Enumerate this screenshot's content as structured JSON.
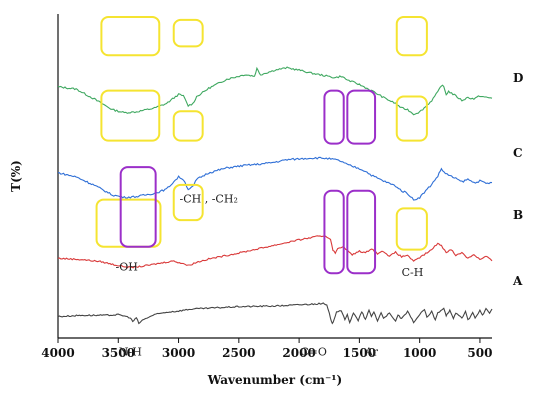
{
  "chart_data": {
    "type": "line",
    "title": "",
    "xlabel": "Wavenumber (cm⁻¹)",
    "ylabel": "T(%)",
    "xlim": [
      4000,
      400
    ],
    "x_reversed": true,
    "x_ticks": [
      4000,
      3500,
      3000,
      2500,
      2000,
      1500,
      1000,
      500
    ],
    "y_ticks": false,
    "grid": false,
    "legend": "none",
    "series": [
      {
        "name": "D",
        "color": "#3fa860",
        "points": [
          [
            4000,
            70
          ],
          [
            3850,
            67
          ],
          [
            3700,
            54
          ],
          [
            3550,
            40
          ],
          [
            3450,
            36
          ],
          [
            3350,
            37
          ],
          [
            3200,
            42
          ],
          [
            3100,
            48
          ],
          [
            3000,
            60
          ],
          [
            2960,
            58
          ],
          [
            2920,
            45
          ],
          [
            2880,
            48
          ],
          [
            2850,
            57
          ],
          [
            2750,
            68
          ],
          [
            2600,
            80
          ],
          [
            2450,
            86
          ],
          [
            2370,
            84
          ],
          [
            2350,
            94
          ],
          [
            2320,
            86
          ],
          [
            2200,
            92
          ],
          [
            2100,
            95
          ],
          [
            2000,
            92
          ],
          [
            1900,
            88
          ],
          [
            1800,
            85
          ],
          [
            1700,
            82
          ],
          [
            1650,
            84
          ],
          [
            1600,
            79
          ],
          [
            1500,
            73
          ],
          [
            1450,
            69
          ],
          [
            1400,
            65
          ],
          [
            1300,
            56
          ],
          [
            1200,
            48
          ],
          [
            1150,
            42
          ],
          [
            1100,
            40
          ],
          [
            1050,
            34
          ],
          [
            1000,
            37
          ],
          [
            950,
            44
          ],
          [
            900,
            52
          ],
          [
            850,
            63
          ],
          [
            820,
            72
          ],
          [
            800,
            70
          ],
          [
            780,
            60
          ],
          [
            760,
            64
          ],
          [
            700,
            58
          ],
          [
            650,
            52
          ],
          [
            600,
            56
          ],
          [
            550,
            54
          ],
          [
            500,
            58
          ],
          [
            450,
            56
          ],
          [
            400,
            55
          ]
        ]
      },
      {
        "name": "C",
        "color": "#2f6fd6",
        "points": [
          [
            4000,
            60
          ],
          [
            3850,
            55
          ],
          [
            3700,
            45
          ],
          [
            3550,
            33
          ],
          [
            3450,
            30
          ],
          [
            3350,
            31
          ],
          [
            3200,
            35
          ],
          [
            3100,
            40
          ],
          [
            3000,
            55
          ],
          [
            2960,
            52
          ],
          [
            2920,
            40
          ],
          [
            2880,
            43
          ],
          [
            2850,
            52
          ],
          [
            2750,
            60
          ],
          [
            2600,
            66
          ],
          [
            2450,
            69
          ],
          [
            2300,
            71
          ],
          [
            2200,
            73
          ],
          [
            2100,
            76
          ],
          [
            2000,
            77
          ],
          [
            1900,
            78
          ],
          [
            1800,
            78
          ],
          [
            1700,
            76
          ],
          [
            1650,
            74
          ],
          [
            1600,
            70
          ],
          [
            1500,
            65
          ],
          [
            1450,
            62
          ],
          [
            1400,
            57
          ],
          [
            1300,
            50
          ],
          [
            1200,
            44
          ],
          [
            1150,
            38
          ],
          [
            1100,
            35
          ],
          [
            1050,
            27
          ],
          [
            1000,
            30
          ],
          [
            950,
            38
          ],
          [
            900,
            46
          ],
          [
            850,
            56
          ],
          [
            820,
            65
          ],
          [
            800,
            61
          ],
          [
            760,
            57
          ],
          [
            700,
            53
          ],
          [
            650,
            49
          ],
          [
            600,
            52
          ],
          [
            550,
            48
          ],
          [
            500,
            50
          ],
          [
            450,
            47
          ],
          [
            400,
            48
          ]
        ]
      },
      {
        "name": "B",
        "color": "#d93a3a",
        "points": [
          [
            4000,
            45
          ],
          [
            3800,
            43
          ],
          [
            3650,
            40
          ],
          [
            3500,
            34
          ],
          [
            3400,
            31
          ],
          [
            3300,
            33
          ],
          [
            3200,
            36
          ],
          [
            3050,
            41
          ],
          [
            2960,
            37
          ],
          [
            2920,
            34
          ],
          [
            2850,
            39
          ],
          [
            2750,
            44
          ],
          [
            2500,
            53
          ],
          [
            2250,
            63
          ],
          [
            2000,
            73
          ],
          [
            1850,
            78
          ],
          [
            1780,
            79
          ],
          [
            1740,
            74
          ],
          [
            1720,
            58
          ],
          [
            1700,
            52
          ],
          [
            1680,
            60
          ],
          [
            1640,
            63
          ],
          [
            1600,
            57
          ],
          [
            1560,
            50
          ],
          [
            1500,
            56
          ],
          [
            1450,
            53
          ],
          [
            1400,
            60
          ],
          [
            1350,
            52
          ],
          [
            1300,
            56
          ],
          [
            1250,
            48
          ],
          [
            1200,
            54
          ],
          [
            1150,
            47
          ],
          [
            1100,
            50
          ],
          [
            1050,
            40
          ],
          [
            1000,
            46
          ],
          [
            950,
            52
          ],
          [
            900,
            58
          ],
          [
            850,
            68
          ],
          [
            820,
            64
          ],
          [
            780,
            54
          ],
          [
            740,
            59
          ],
          [
            700,
            49
          ],
          [
            650,
            54
          ],
          [
            600,
            45
          ],
          [
            550,
            51
          ],
          [
            500,
            43
          ],
          [
            450,
            48
          ],
          [
            400,
            41
          ]
        ]
      },
      {
        "name": "A",
        "color": "#444444",
        "points": [
          [
            4000,
            12
          ],
          [
            3800,
            14
          ],
          [
            3600,
            14
          ],
          [
            3500,
            15
          ],
          [
            3450,
            13
          ],
          [
            3400,
            10
          ],
          [
            3380,
            4
          ],
          [
            3350,
            10
          ],
          [
            3330,
            1
          ],
          [
            3300,
            6
          ],
          [
            3260,
            10
          ],
          [
            3200,
            15
          ],
          [
            3100,
            19
          ],
          [
            3000,
            21
          ],
          [
            2900,
            24
          ],
          [
            2700,
            26
          ],
          [
            2500,
            28
          ],
          [
            2200,
            29
          ],
          [
            2000,
            31
          ],
          [
            1800,
            33
          ],
          [
            1770,
            30
          ],
          [
            1740,
            10
          ],
          [
            1725,
            0
          ],
          [
            1710,
            8
          ],
          [
            1690,
            20
          ],
          [
            1650,
            22
          ],
          [
            1620,
            6
          ],
          [
            1600,
            15
          ],
          [
            1580,
            3
          ],
          [
            1550,
            18
          ],
          [
            1510,
            5
          ],
          [
            1480,
            20
          ],
          [
            1450,
            7
          ],
          [
            1420,
            22
          ],
          [
            1400,
            12
          ],
          [
            1380,
            20
          ],
          [
            1350,
            5
          ],
          [
            1320,
            18
          ],
          [
            1300,
            10
          ],
          [
            1250,
            17
          ],
          [
            1200,
            4
          ],
          [
            1180,
            15
          ],
          [
            1150,
            8
          ],
          [
            1100,
            20
          ],
          [
            1050,
            3
          ],
          [
            1000,
            15
          ],
          [
            960,
            24
          ],
          [
            940,
            10
          ],
          [
            900,
            20
          ],
          [
            870,
            6
          ],
          [
            850,
            18
          ],
          [
            800,
            26
          ],
          [
            780,
            14
          ],
          [
            750,
            22
          ],
          [
            720,
            8
          ],
          [
            700,
            18
          ],
          [
            650,
            10
          ],
          [
            620,
            20
          ],
          [
            600,
            6
          ],
          [
            560,
            18
          ],
          [
            540,
            10
          ],
          [
            500,
            22
          ],
          [
            480,
            14
          ],
          [
            450,
            24
          ],
          [
            420,
            18
          ],
          [
            400,
            24
          ]
        ]
      }
    ],
    "annotations": {
      "labels": [
        {
          "text": "-OH",
          "x": 3430,
          "y": 23
        },
        {
          "text": "-CH , -CH₂",
          "x": 2750,
          "y": 46
        },
        {
          "text": "C-H",
          "x": 1060,
          "y": 21
        },
        {
          "text": "N-H",
          "x": 3400,
          "y": -6
        },
        {
          "text": "C=O",
          "x": 1880,
          "y": -6
        },
        {
          "text": "Ar",
          "x": 1400,
          "y": -6
        }
      ],
      "boxes": [
        {
          "color": "#f5e431",
          "x1": 3680,
          "x2": 3150,
          "y1": 31,
          "y2": 47
        },
        {
          "color": "#f5e431",
          "x1": 3040,
          "x2": 2800,
          "y1": 40,
          "y2": 52
        },
        {
          "color": "#f5e431",
          "x1": 1190,
          "x2": 940,
          "y1": 30,
          "y2": 44
        },
        {
          "color": "#f5e431",
          "x1": 3640,
          "x2": 3160,
          "y1": 67,
          "y2": 84
        },
        {
          "color": "#f5e431",
          "x1": 3040,
          "x2": 2800,
          "y1": 67,
          "y2": 77
        },
        {
          "color": "#f5e431",
          "x1": 1190,
          "x2": 940,
          "y1": 67,
          "y2": 82
        },
        {
          "color": "#f5e431",
          "x1": 3640,
          "x2": 3160,
          "y1": 96,
          "y2": 109
        },
        {
          "color": "#f5e431",
          "x1": 3040,
          "x2": 2800,
          "y1": 99,
          "y2": 108
        },
        {
          "color": "#f5e431",
          "x1": 1190,
          "x2": 940,
          "y1": 96,
          "y2": 109
        },
        {
          "color": "#9b2fc9",
          "x1": 1790,
          "x2": 1630,
          "y1": 66,
          "y2": 84
        },
        {
          "color": "#9b2fc9",
          "x1": 1600,
          "x2": 1370,
          "y1": 66,
          "y2": 84
        },
        {
          "color": "#9b2fc9",
          "x1": 3480,
          "x2": 3190,
          "y1": 31,
          "y2": 58
        },
        {
          "color": "#9b2fc9",
          "x1": 1790,
          "x2": 1630,
          "y1": 22,
          "y2": 50
        },
        {
          "color": "#9b2fc9",
          "x1": 1600,
          "x2": 1370,
          "y1": 22,
          "y2": 50
        }
      ]
    }
  }
}
